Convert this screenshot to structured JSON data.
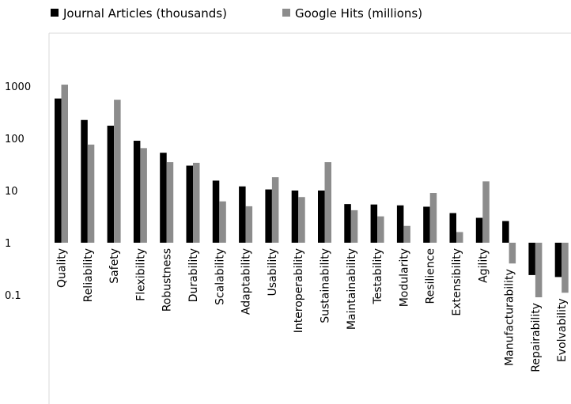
{
  "chart_data": {
    "type": "bar",
    "scale": "log",
    "title": "",
    "xlabel": "",
    "ylabel": "",
    "ylim": [
      0.1,
      1000
    ],
    "y_ticks": [
      {
        "value": 1000,
        "label": "1000"
      },
      {
        "value": 100,
        "label": "100"
      },
      {
        "value": 10,
        "label": "10"
      },
      {
        "value": 1,
        "label": "1"
      },
      {
        "value": 0.1,
        "label": "0.1"
      }
    ],
    "grid": false,
    "legend_position": "top-left",
    "categories": [
      "Quality",
      "Reliability",
      "Safety",
      "Flexibility",
      "Robustness",
      "Durability",
      "Scalability",
      "Adaptability",
      "Usability",
      "Interoperability",
      "Sustainability",
      "Maintainability",
      "Testability",
      "Modularity",
      "Resilience",
      "Extensibility",
      "Agility",
      "Manufacturability",
      "Repairability",
      "Evolvability"
    ],
    "series": [
      {
        "name": "Journal Articles (thousands)",
        "color": "#000000",
        "values": [
          580,
          225,
          175,
          90,
          53,
          30,
          15.5,
          12,
          10.5,
          10,
          10,
          5.5,
          5.4,
          5.2,
          4.9,
          3.7,
          3.0,
          2.6,
          0.24,
          0.22
        ]
      },
      {
        "name": "Google Hits (millions)",
        "color": "#8c8c8c",
        "values": [
          1070,
          76,
          550,
          65,
          35,
          34,
          6.2,
          5.0,
          18,
          7.5,
          35,
          4.2,
          3.2,
          2.1,
          9.0,
          1.6,
          15,
          0.4,
          0.09,
          0.11
        ]
      }
    ]
  }
}
